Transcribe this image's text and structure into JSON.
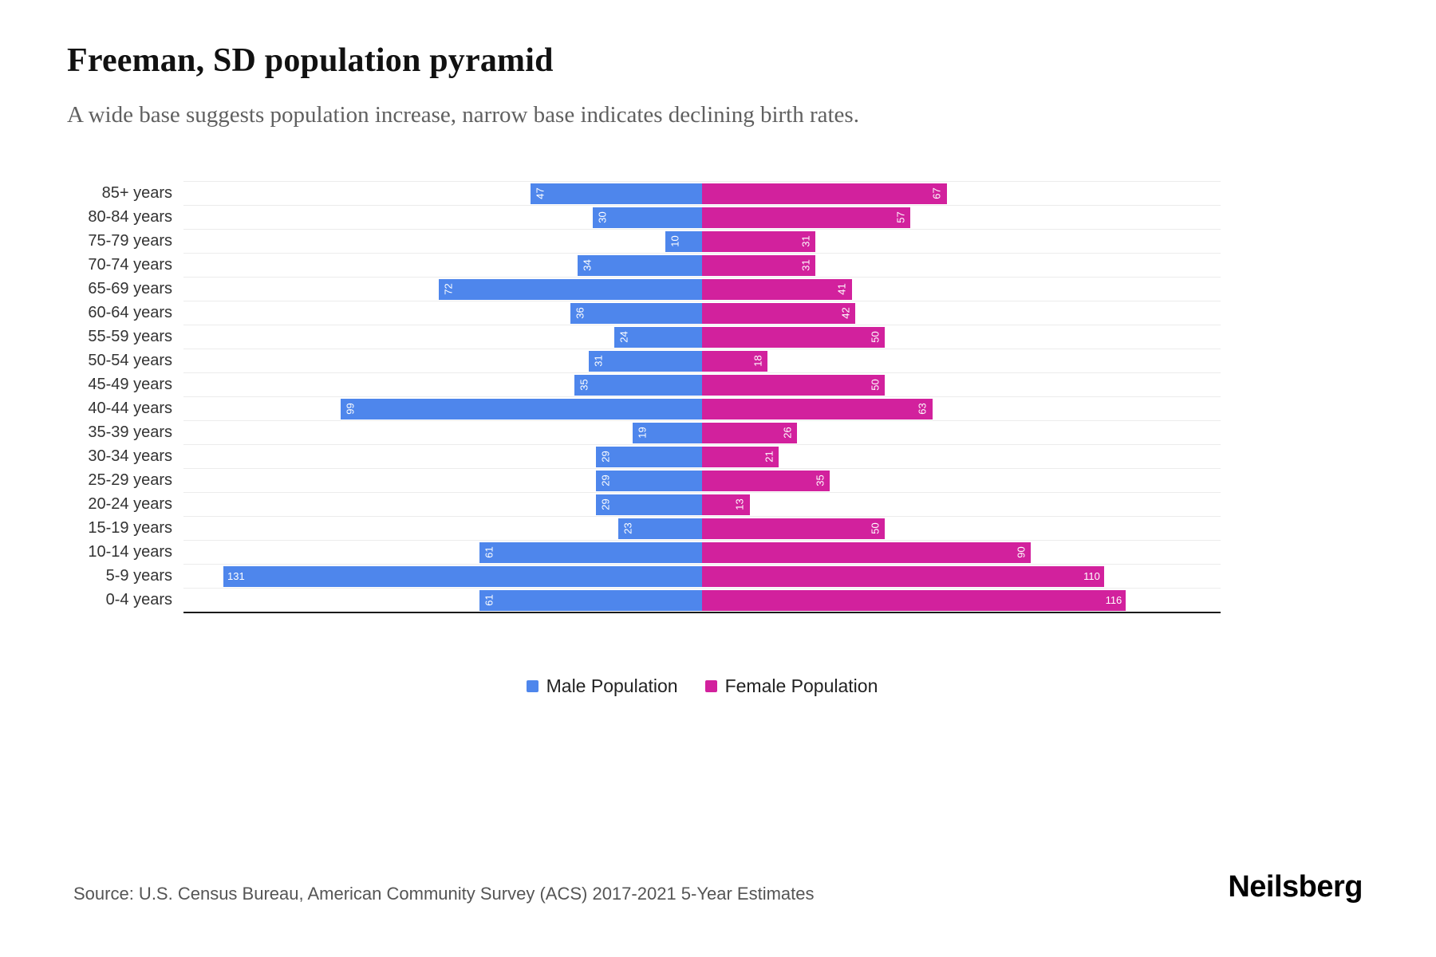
{
  "page": {
    "title": "Freeman, SD population pyramid",
    "subtitle": "A wide base suggests population increase, narrow base indicates declining birth rates.",
    "source": "Source: U.S. Census Bureau, American Community Survey (ACS) 2017-2021 5-Year Estimates",
    "brand": "Neilsberg"
  },
  "legend": {
    "male_label": "Male Population",
    "female_label": "Female Population"
  },
  "colors": {
    "male": "#4e86ec",
    "female": "#d2219d",
    "gridline": "#ececec",
    "axis": "#1a1a1a"
  },
  "chart_data": {
    "type": "bar",
    "variant": "population-pyramid",
    "title": "Freeman, SD population pyramid",
    "subtitle": "A wide base suggests population increase, narrow base indicates declining birth rates.",
    "orientation": "horizontal",
    "grid": true,
    "legend_position": "bottom",
    "x_max": 131,
    "categories": [
      "85+ years",
      "80-84 years",
      "75-79 years",
      "70-74 years",
      "65-69 years",
      "60-64 years",
      "55-59 years",
      "50-54 years",
      "45-49 years",
      "40-44 years",
      "35-39 years",
      "30-34 years",
      "25-29 years",
      "20-24 years",
      "15-19 years",
      "10-14 years",
      "5-9 years",
      "0-4 years"
    ],
    "series": [
      {
        "name": "Male Population",
        "color": "#4e86ec",
        "direction": "left",
        "values": [
          47,
          30,
          10,
          34,
          72,
          36,
          24,
          31,
          35,
          99,
          19,
          29,
          29,
          29,
          23,
          61,
          131,
          61
        ]
      },
      {
        "name": "Female Population",
        "color": "#d2219d",
        "direction": "right",
        "values": [
          67,
          57,
          31,
          31,
          41,
          42,
          50,
          18,
          50,
          63,
          26,
          21,
          35,
          13,
          50,
          90,
          110,
          116
        ]
      }
    ],
    "source": "Source: U.S. Census Bureau, American Community Survey (ACS) 2017-2021 5-Year Estimates"
  }
}
